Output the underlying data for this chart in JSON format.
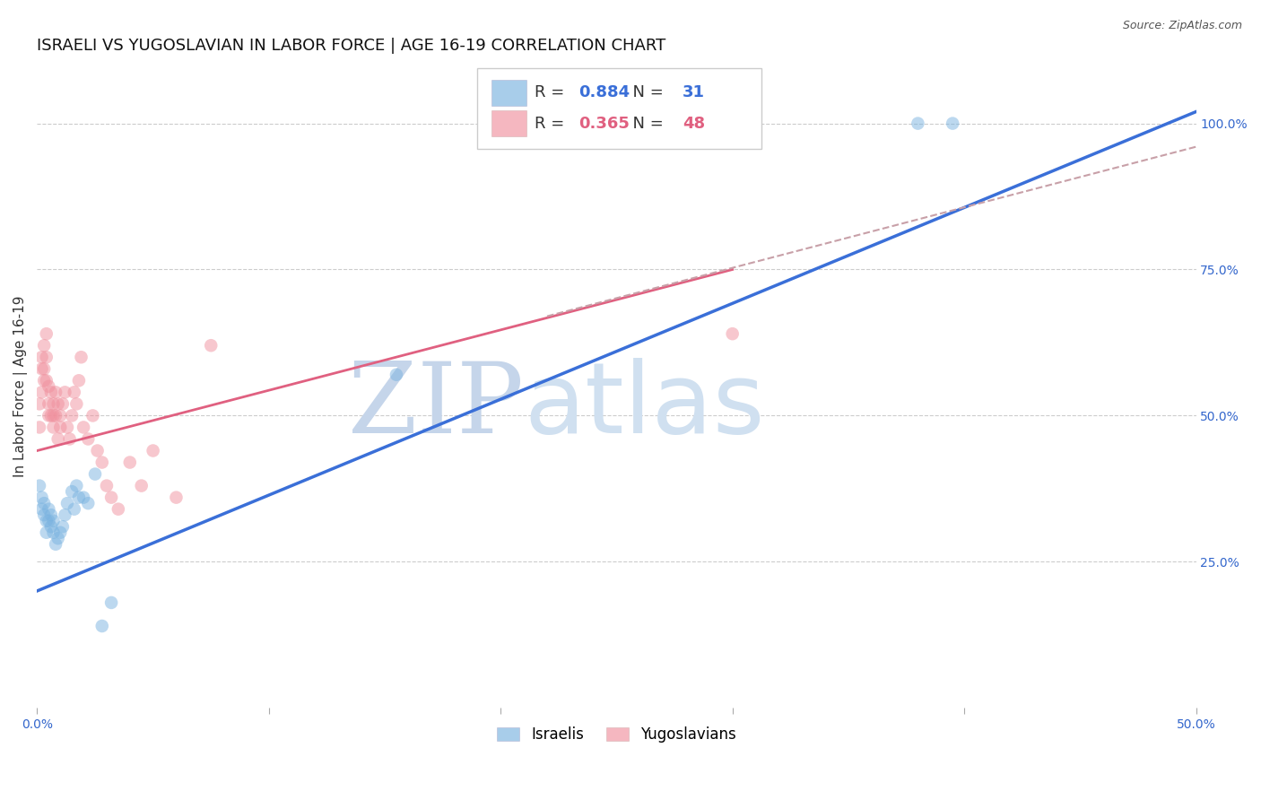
{
  "title": "ISRAELI VS YUGOSLAVIAN IN LABOR FORCE | AGE 16-19 CORRELATION CHART",
  "source": "Source: ZipAtlas.com",
  "ylabel": "In Labor Force | Age 16-19",
  "xlim": [
    0.0,
    0.5
  ],
  "ylim": [
    0.0,
    1.1
  ],
  "xtick_positions": [
    0.0,
    0.1,
    0.2,
    0.3,
    0.4,
    0.5
  ],
  "xticklabels": [
    "0.0%",
    "",
    "",
    "",
    "",
    "50.0%"
  ],
  "ytick_positions": [
    0.25,
    0.5,
    0.75,
    1.0
  ],
  "ytick_labels": [
    "25.0%",
    "50.0%",
    "75.0%",
    "100.0%"
  ],
  "legend_R_blue": "0.884",
  "legend_N_blue": "31",
  "legend_R_pink": "0.365",
  "legend_N_pink": "48",
  "israelis_x": [
    0.001,
    0.002,
    0.002,
    0.003,
    0.003,
    0.004,
    0.004,
    0.005,
    0.005,
    0.006,
    0.006,
    0.007,
    0.007,
    0.008,
    0.009,
    0.01,
    0.011,
    0.012,
    0.013,
    0.015,
    0.016,
    0.017,
    0.018,
    0.02,
    0.022,
    0.025,
    0.028,
    0.032,
    0.155,
    0.38,
    0.395
  ],
  "israelis_y": [
    0.38,
    0.36,
    0.34,
    0.35,
    0.33,
    0.32,
    0.3,
    0.34,
    0.32,
    0.33,
    0.31,
    0.3,
    0.32,
    0.28,
    0.29,
    0.3,
    0.31,
    0.33,
    0.35,
    0.37,
    0.34,
    0.38,
    0.36,
    0.36,
    0.35,
    0.4,
    0.14,
    0.18,
    0.57,
    1.0,
    1.0
  ],
  "yugoslavians_x": [
    0.001,
    0.001,
    0.002,
    0.002,
    0.002,
    0.003,
    0.003,
    0.003,
    0.004,
    0.004,
    0.004,
    0.005,
    0.005,
    0.005,
    0.006,
    0.006,
    0.007,
    0.007,
    0.007,
    0.008,
    0.008,
    0.009,
    0.009,
    0.01,
    0.01,
    0.011,
    0.012,
    0.013,
    0.014,
    0.015,
    0.016,
    0.017,
    0.018,
    0.019,
    0.02,
    0.022,
    0.024,
    0.026,
    0.028,
    0.03,
    0.032,
    0.035,
    0.04,
    0.045,
    0.05,
    0.06,
    0.075,
    0.3
  ],
  "yugoslavians_y": [
    0.52,
    0.48,
    0.58,
    0.54,
    0.6,
    0.62,
    0.58,
    0.56,
    0.64,
    0.6,
    0.56,
    0.52,
    0.5,
    0.55,
    0.5,
    0.54,
    0.52,
    0.48,
    0.5,
    0.54,
    0.5,
    0.46,
    0.52,
    0.5,
    0.48,
    0.52,
    0.54,
    0.48,
    0.46,
    0.5,
    0.54,
    0.52,
    0.56,
    0.6,
    0.48,
    0.46,
    0.5,
    0.44,
    0.42,
    0.38,
    0.36,
    0.34,
    0.42,
    0.38,
    0.44,
    0.36,
    0.62,
    0.64
  ],
  "blue_line_x": [
    0.0,
    0.5
  ],
  "blue_line_y": [
    0.2,
    1.02
  ],
  "pink_line_x": [
    0.0,
    0.3
  ],
  "pink_line_y": [
    0.44,
    0.75
  ],
  "pink_dashed_line_x": [
    0.22,
    0.5
  ],
  "pink_dashed_line_y": [
    0.67,
    0.96
  ],
  "scatter_size": 110,
  "blue_color": "#7ab3e0",
  "pink_color": "#f0919e",
  "blue_line_color": "#3a6fd8",
  "pink_line_color": "#e06080",
  "pink_dashed_color": "#c8a0a8",
  "watermark_zip_color": "#c8d8f0",
  "watermark_atlas_color": "#b8d0e8",
  "background_color": "#ffffff",
  "title_fontsize": 13,
  "axis_label_fontsize": 11,
  "tick_fontsize": 10,
  "legend_fontsize": 13,
  "source_fontsize": 9
}
